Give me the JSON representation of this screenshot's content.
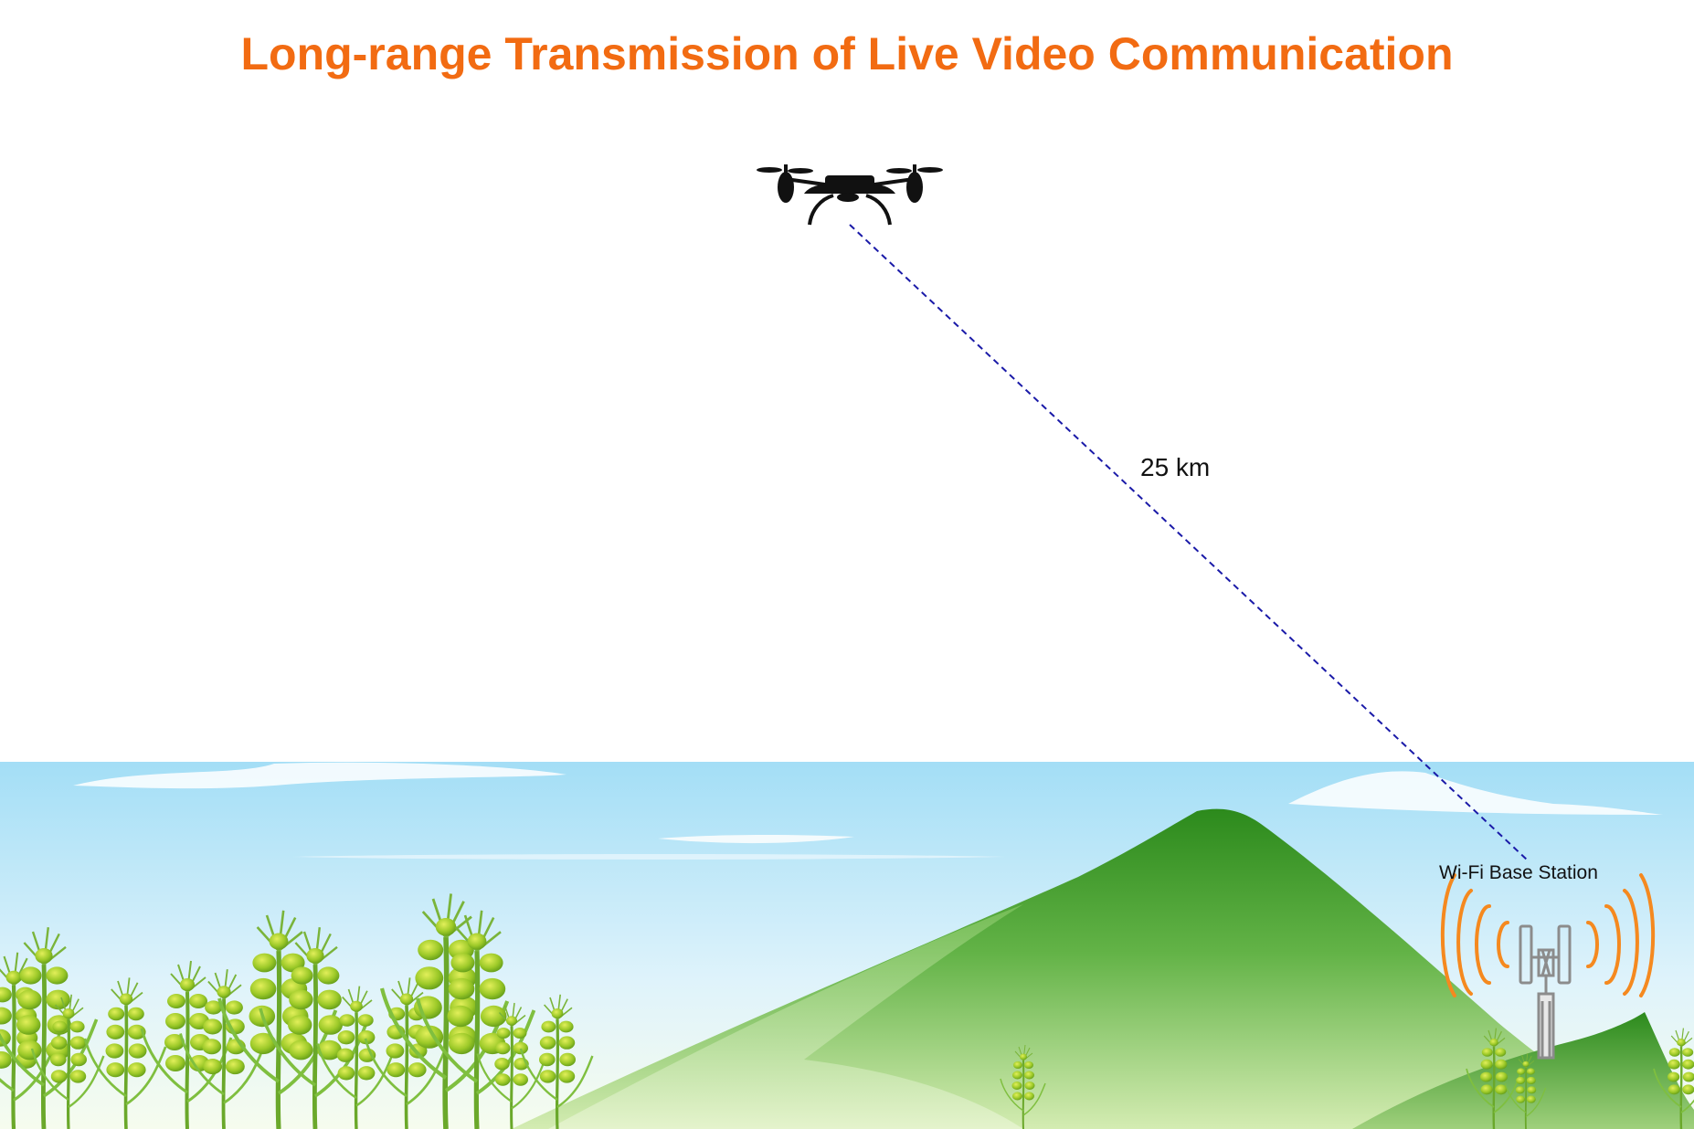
{
  "title": "Long-range Transmission of Live Video Communication",
  "link": {
    "distance_label": "25 km"
  },
  "station": {
    "label": "Wi-Fi Base Station"
  },
  "colors": {
    "title": "#f26b12",
    "link_line": "#1a1aa8",
    "signal_waves": "#f5891f",
    "tower": "#8c8c8c",
    "mountain": "#2e8b1e",
    "sky_top": "#9fdcf5"
  },
  "icons": [
    "drone-icon",
    "tower-icon",
    "signal-waves-icon",
    "wheat-plant-icon"
  ]
}
